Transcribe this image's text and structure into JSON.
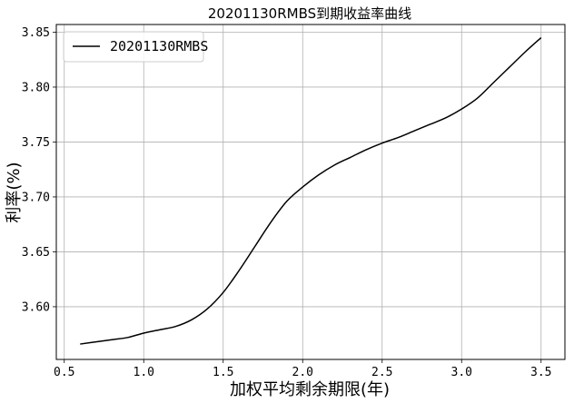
{
  "chart_data": {
    "type": "line",
    "title": "20201130RMBS到期收益率曲线",
    "xlabel": "加权平均剩余期限(年)",
    "ylabel": "利率(%)",
    "xlim": [
      0.45,
      3.65
    ],
    "ylim": [
      3.552,
      3.857
    ],
    "xticks": [
      0.5,
      1.0,
      1.5,
      2.0,
      2.5,
      3.0,
      3.5
    ],
    "xtick_labels": [
      "0.5",
      "1.0",
      "1.5",
      "2.0",
      "2.5",
      "3.0",
      "3.5"
    ],
    "yticks": [
      3.6,
      3.65,
      3.7,
      3.75,
      3.8,
      3.85
    ],
    "ytick_labels": [
      "3.60",
      "3.65",
      "3.70",
      "3.75",
      "3.80",
      "3.85"
    ],
    "grid": true,
    "legend_position": "upper-left",
    "series": [
      {
        "name": "20201130RMBS",
        "color": "#000000",
        "x": [
          0.6,
          0.7,
          0.8,
          0.9,
          1.0,
          1.1,
          1.2,
          1.3,
          1.4,
          1.5,
          1.6,
          1.7,
          1.8,
          1.9,
          2.0,
          2.1,
          2.2,
          2.3,
          2.4,
          2.5,
          2.6,
          2.7,
          2.8,
          2.9,
          3.0,
          3.1,
          3.2,
          3.3,
          3.4,
          3.5
        ],
        "y": [
          3.566,
          3.568,
          3.57,
          3.572,
          3.576,
          3.579,
          3.582,
          3.588,
          3.598,
          3.613,
          3.633,
          3.655,
          3.677,
          3.696,
          3.709,
          3.72,
          3.729,
          3.736,
          3.743,
          3.749,
          3.754,
          3.76,
          3.766,
          3.772,
          3.78,
          3.79,
          3.804,
          3.818,
          3.832,
          3.845
        ]
      }
    ]
  }
}
